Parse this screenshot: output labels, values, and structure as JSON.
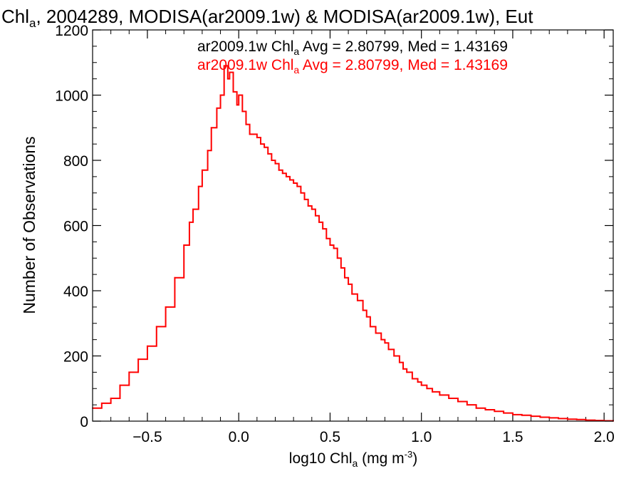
{
  "chart_data": {
    "type": "line",
    "title": {
      "prefix": "Chl",
      "sub": "a",
      "suffix": ", 2004289, MODISA(ar2009.1w) & MODISA(ar2009.1w), Eut"
    },
    "xlabel": {
      "prefix": "log10 Chl",
      "sub": "a",
      "middle": " (mg m",
      "sup": "-3",
      "suffix": ")"
    },
    "ylabel": "Number of Observations",
    "xlim": [
      -0.8,
      2.05
    ],
    "ylim": [
      0,
      1200
    ],
    "x_ticks": [
      {
        "v": -0.5,
        "label": "−0.5"
      },
      {
        "v": 0.0,
        "label": "0.0"
      },
      {
        "v": 0.5,
        "label": "0.5"
      },
      {
        "v": 1.0,
        "label": "1.0"
      },
      {
        "v": 1.5,
        "label": "1.5"
      },
      {
        "v": 2.0,
        "label": "2.0"
      }
    ],
    "y_ticks": [
      {
        "v": 0,
        "label": "0"
      },
      {
        "v": 200,
        "label": "200"
      },
      {
        "v": 400,
        "label": "400"
      },
      {
        "v": 600,
        "label": "600"
      },
      {
        "v": 800,
        "label": "800"
      },
      {
        "v": 1000,
        "label": "1000"
      },
      {
        "v": 1200,
        "label": "1200"
      }
    ],
    "legend_position": "top-center",
    "legend": [
      {
        "prefix": "ar2009.1w Chl",
        "sub": "a",
        "suffix": " Avg = 2.80799, Med = 1.43169",
        "color": "#000000"
      },
      {
        "prefix": "ar2009.1w Chl",
        "sub": "a",
        "suffix": " Avg = 2.80799, Med = 1.43169",
        "color": "#ff0000"
      }
    ],
    "series": [
      {
        "color": "#ff0000",
        "step": true,
        "x": [
          -0.8,
          -0.75,
          -0.7,
          -0.65,
          -0.6,
          -0.55,
          -0.5,
          -0.45,
          -0.4,
          -0.35,
          -0.3,
          -0.27,
          -0.25,
          -0.22,
          -0.2,
          -0.17,
          -0.15,
          -0.12,
          -0.1,
          -0.08,
          -0.06,
          -0.05,
          -0.03,
          -0.01,
          0.0,
          0.02,
          0.04,
          0.06,
          0.08,
          0.1,
          0.12,
          0.14,
          0.16,
          0.18,
          0.2,
          0.22,
          0.24,
          0.26,
          0.28,
          0.3,
          0.32,
          0.34,
          0.36,
          0.38,
          0.4,
          0.42,
          0.44,
          0.46,
          0.48,
          0.5,
          0.52,
          0.54,
          0.56,
          0.58,
          0.6,
          0.62,
          0.65,
          0.68,
          0.7,
          0.72,
          0.75,
          0.78,
          0.8,
          0.82,
          0.85,
          0.88,
          0.9,
          0.92,
          0.95,
          0.98,
          1.0,
          1.03,
          1.06,
          1.1,
          1.15,
          1.2,
          1.25,
          1.3,
          1.35,
          1.4,
          1.45,
          1.5,
          1.55,
          1.6,
          1.65,
          1.7,
          1.75,
          1.8,
          1.85,
          1.9,
          1.95,
          2.0,
          2.05
        ],
        "y": [
          40,
          55,
          70,
          110,
          150,
          190,
          230,
          290,
          350,
          440,
          540,
          610,
          650,
          720,
          770,
          830,
          900,
          960,
          1000,
          1090,
          1050,
          1070,
          1010,
          970,
          1000,
          950,
          910,
          880,
          880,
          870,
          850,
          840,
          820,
          800,
          790,
          770,
          760,
          750,
          740,
          730,
          720,
          700,
          680,
          660,
          650,
          630,
          610,
          590,
          560,
          540,
          530,
          500,
          470,
          440,
          420,
          390,
          370,
          340,
          320,
          290,
          270,
          250,
          240,
          220,
          200,
          180,
          160,
          150,
          130,
          120,
          110,
          100,
          90,
          80,
          70,
          60,
          50,
          40,
          35,
          30,
          25,
          20,
          18,
          15,
          12,
          10,
          8,
          6,
          5,
          3,
          2,
          1,
          0
        ]
      }
    ]
  }
}
